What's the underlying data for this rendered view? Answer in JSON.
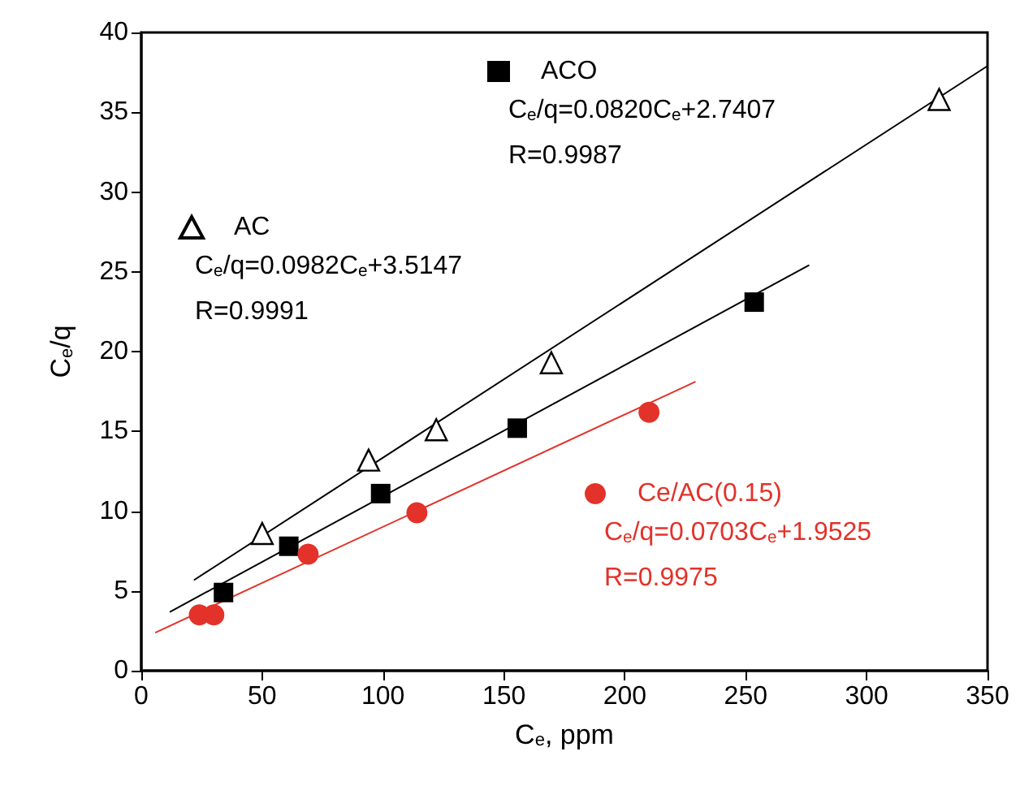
{
  "chart_data": {
    "type": "scatter",
    "xlabel": "C$_{e}$, ppm",
    "ylabel": "C$_{e}$/q",
    "xlim": [
      0,
      350
    ],
    "xticks": [
      0,
      50,
      100,
      150,
      200,
      250,
      300,
      350
    ],
    "ylim": [
      0,
      40
    ],
    "yticks": [
      0,
      5,
      10,
      15,
      20,
      25,
      30,
      35,
      40
    ],
    "grid": false,
    "legend": "top left",
    "series": [
      {
        "name": "ACO",
        "marker": "square",
        "color": "#000000",
        "x": [
          34,
          61,
          99,
          155.5,
          253.5
        ],
        "values": [
          4.9,
          7.8,
          11.1,
          15.2,
          23.1
        ]
      },
      {
        "name": "AC",
        "marker": "triangle",
        "color": "#000000",
        "x": [
          50,
          94,
          122,
          169.6,
          330
        ],
        "values": [
          8.6,
          13.2,
          15.1,
          19.3,
          35.8
        ]
      },
      {
        "name": "Ce/AC(0.15)",
        "marker": "circle",
        "color": "#e2322a",
        "x": [
          24,
          30,
          69,
          114,
          210
        ],
        "values": [
          3.5,
          3.5,
          7.3,
          9.9,
          16.2
        ]
      },
      {
        "type": "line",
        "marker": "none",
        "color": "#000000",
        "x": [
          12,
          276
        ],
        "values": [
          3.7,
          25.4
        ]
      },
      {
        "type": "line",
        "marker": "none",
        "color": "#000000",
        "x": [
          22,
          350
        ],
        "values": [
          5.7,
          37.9
        ]
      },
      {
        "type": "line",
        "marker": "none",
        "color": "#e2322a",
        "x": [
          6,
          229
        ],
        "values": [
          2.4,
          18.1
        ]
      }
    ],
    "annotations": [
      "C$_{e}$/q=0.0820C$_{e}$+2.7407",
      "R=0.9987",
      "C$_{e}$/q=0.0982C$_{e}$+3.5147",
      "R=0.9991",
      "C$_{e}$/q=0.0703C$_{e}$+1.9525",
      "R=0.9975"
    ]
  }
}
